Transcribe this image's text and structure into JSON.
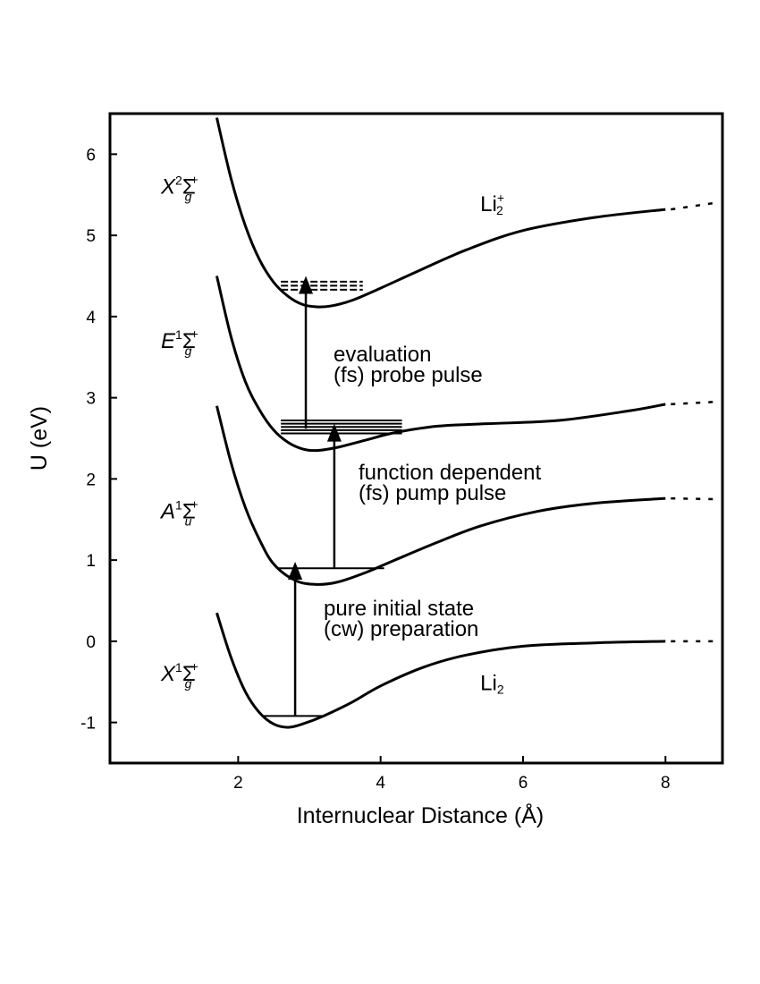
{
  "chart_data": {
    "type": "line",
    "title": "",
    "xlabel": "Internuclear Distance (Å)",
    "ylabel": "U (eV)",
    "xlim": [
      0.2,
      8.8
    ],
    "ylim": [
      -1.5,
      6.5
    ],
    "x_ticks": [
      2,
      4,
      6,
      8
    ],
    "x_tick_labels": [
      "2",
      "4",
      "6",
      "8"
    ],
    "y_ticks": [
      -1,
      0,
      1,
      2,
      3,
      4,
      5,
      6
    ],
    "y_tick_labels": [
      "-1",
      "0",
      "1",
      "2",
      "3",
      "4",
      "5",
      "6"
    ],
    "grid": false,
    "series": [
      {
        "name": "X¹Σg⁺",
        "asymptote": 0.0,
        "x": [
          1.7,
          1.9,
          2.1,
          2.3,
          2.5,
          2.7,
          2.9,
          3.2,
          3.6,
          4.0,
          4.6,
          5.2,
          6.0,
          7.0,
          8.0
        ],
        "y": [
          0.35,
          -0.2,
          -0.62,
          -0.88,
          -1.02,
          -1.06,
          -1.02,
          -0.92,
          -0.75,
          -0.55,
          -0.32,
          -0.17,
          -0.06,
          -0.02,
          0.0
        ]
      },
      {
        "name": "A¹Σu⁺",
        "asymptote": 1.75,
        "x": [
          1.7,
          1.9,
          2.1,
          2.3,
          2.5,
          2.8,
          3.1,
          3.4,
          3.8,
          4.2,
          4.8,
          5.4,
          6.2,
          7.0,
          8.0
        ],
        "y": [
          2.9,
          2.2,
          1.65,
          1.25,
          0.95,
          0.75,
          0.7,
          0.73,
          0.85,
          1.0,
          1.22,
          1.42,
          1.6,
          1.7,
          1.76
        ]
      },
      {
        "name": "E¹Σg⁺",
        "asymptote": 2.95,
        "x": [
          1.7,
          1.9,
          2.1,
          2.3,
          2.5,
          2.7,
          2.9,
          3.1,
          3.4,
          3.8,
          4.2,
          4.8,
          5.5,
          6.5,
          7.5,
          8.0
        ],
        "y": [
          4.5,
          3.75,
          3.2,
          2.85,
          2.6,
          2.45,
          2.37,
          2.35,
          2.39,
          2.48,
          2.57,
          2.65,
          2.68,
          2.72,
          2.84,
          2.92
        ]
      },
      {
        "name": "X²Σg⁺",
        "asymptote": 5.4,
        "x": [
          1.7,
          1.9,
          2.1,
          2.3,
          2.5,
          2.7,
          2.9,
          3.1,
          3.3,
          3.6,
          4.0,
          4.5,
          5.2,
          6.0,
          7.0,
          8.0
        ],
        "y": [
          6.45,
          5.7,
          5.12,
          4.7,
          4.42,
          4.25,
          4.15,
          4.12,
          4.13,
          4.2,
          4.35,
          4.55,
          4.82,
          5.06,
          5.22,
          5.32
        ]
      }
    ],
    "arrows": [
      {
        "x": 2.8,
        "from": -0.92,
        "to": 0.98,
        "label": [
          "pure initial state",
          "(cw) preparation"
        ]
      },
      {
        "x": 3.35,
        "from": 0.9,
        "to": 2.68,
        "label": [
          "function dependent",
          "(fs) pump pulse"
        ]
      },
      {
        "x": 2.95,
        "from": 2.62,
        "to": 4.5,
        "label": [
          "evaluation",
          "(fs) probe pulse"
        ]
      }
    ],
    "levels": [
      {
        "x_range": [
          2.35,
          3.2
        ],
        "y": -0.92,
        "style": "solid"
      },
      {
        "x_range": [
          2.55,
          4.05
        ],
        "y": 0.9,
        "style": "solid"
      },
      {
        "x_range": [
          2.6,
          4.3
        ],
        "y": [
          2.56,
          2.6,
          2.64,
          2.68,
          2.72
        ],
        "style": "solid"
      },
      {
        "x_range": [
          2.6,
          3.75
        ],
        "y": [
          4.33,
          4.38,
          4.43
        ],
        "style": "dashed"
      }
    ],
    "state_labels": [
      {
        "main": "X",
        "sup": "1",
        "term": "Σ",
        "sub": "g",
        "plus": "+",
        "level": -0.4
      },
      {
        "main": "A",
        "sup": "1",
        "term": "Σ",
        "sub": "u",
        "plus": "+",
        "level": 1.6
      },
      {
        "main": "E",
        "sup": "1",
        "term": "Σ",
        "sub": "g",
        "plus": "+",
        "level": 3.7
      },
      {
        "main": "X",
        "sup": "2",
        "term": "Σ",
        "sub": "g",
        "plus": "+",
        "level": 5.6
      }
    ],
    "molecule_labels": [
      {
        "text": "Li",
        "sub": "2",
        "sup": "",
        "x": 5.4,
        "y": -0.6
      },
      {
        "text": "Li",
        "sub": "2",
        "sup": "+",
        "x": 5.4,
        "y": 5.3
      }
    ]
  }
}
